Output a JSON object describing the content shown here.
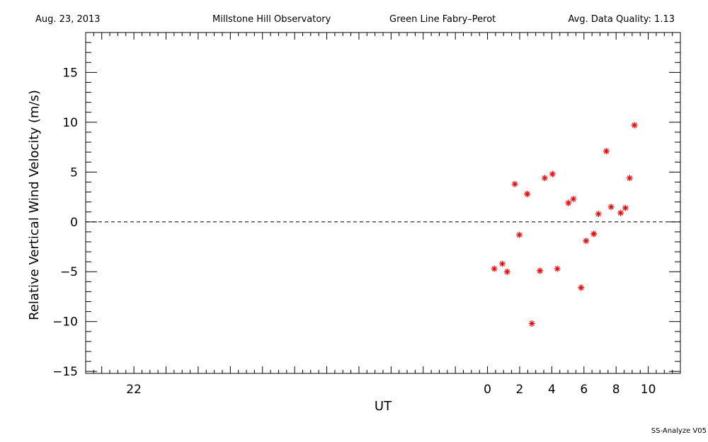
{
  "header": {
    "date": "Aug. 23, 2013",
    "observatory": "Millstone Hill Observatory",
    "instrument": "Green Line Fabry–Perot",
    "quality": "Avg. Data Quality: 1.13"
  },
  "footer": "SS-Analyze V05",
  "colors": {
    "points": "#ff0000",
    "axes": "#000000",
    "zero_line": "#000000"
  },
  "chart_data": {
    "type": "scatter",
    "xlabel": "UT",
    "ylabel": "Relative Vertical Wind Velocity (m/s)",
    "xlim": [
      -25,
      12
    ],
    "ylim": [
      -15.2,
      19
    ],
    "x_ticks": [
      -22,
      0,
      2,
      4,
      6,
      8,
      10
    ],
    "x_tick_labels": [
      "22",
      "0",
      "2",
      "4",
      "6",
      "8",
      "10"
    ],
    "y_ticks": [
      -15,
      -10,
      -5,
      0,
      5,
      10,
      15
    ],
    "y_tick_labels": [
      "−15",
      "−10",
      "−5",
      "0",
      "5",
      "10",
      "15"
    ],
    "reference_line": {
      "y": 0,
      "style": "dashed"
    },
    "marker": "asterisk",
    "grid": false,
    "points": [
      {
        "x": 0.42,
        "y": -4.7
      },
      {
        "x": 0.92,
        "y": -4.2
      },
      {
        "x": 1.22,
        "y": -5.0
      },
      {
        "x": 1.7,
        "y": 3.8
      },
      {
        "x": 1.98,
        "y": -1.3
      },
      {
        "x": 2.47,
        "y": 2.8
      },
      {
        "x": 2.76,
        "y": -10.2
      },
      {
        "x": 3.26,
        "y": -4.9
      },
      {
        "x": 3.56,
        "y": 4.4
      },
      {
        "x": 4.04,
        "y": 4.8
      },
      {
        "x": 4.34,
        "y": -4.7
      },
      {
        "x": 5.03,
        "y": 1.9
      },
      {
        "x": 5.34,
        "y": 2.3
      },
      {
        "x": 5.82,
        "y": -6.6
      },
      {
        "x": 6.13,
        "y": -1.9
      },
      {
        "x": 6.61,
        "y": -1.2
      },
      {
        "x": 6.9,
        "y": 0.8
      },
      {
        "x": 7.39,
        "y": 7.1
      },
      {
        "x": 7.69,
        "y": 1.5
      },
      {
        "x": 8.28,
        "y": 0.9
      },
      {
        "x": 8.58,
        "y": 1.4
      },
      {
        "x": 8.84,
        "y": 4.4
      },
      {
        "x": 9.14,
        "y": 9.7
      }
    ]
  }
}
